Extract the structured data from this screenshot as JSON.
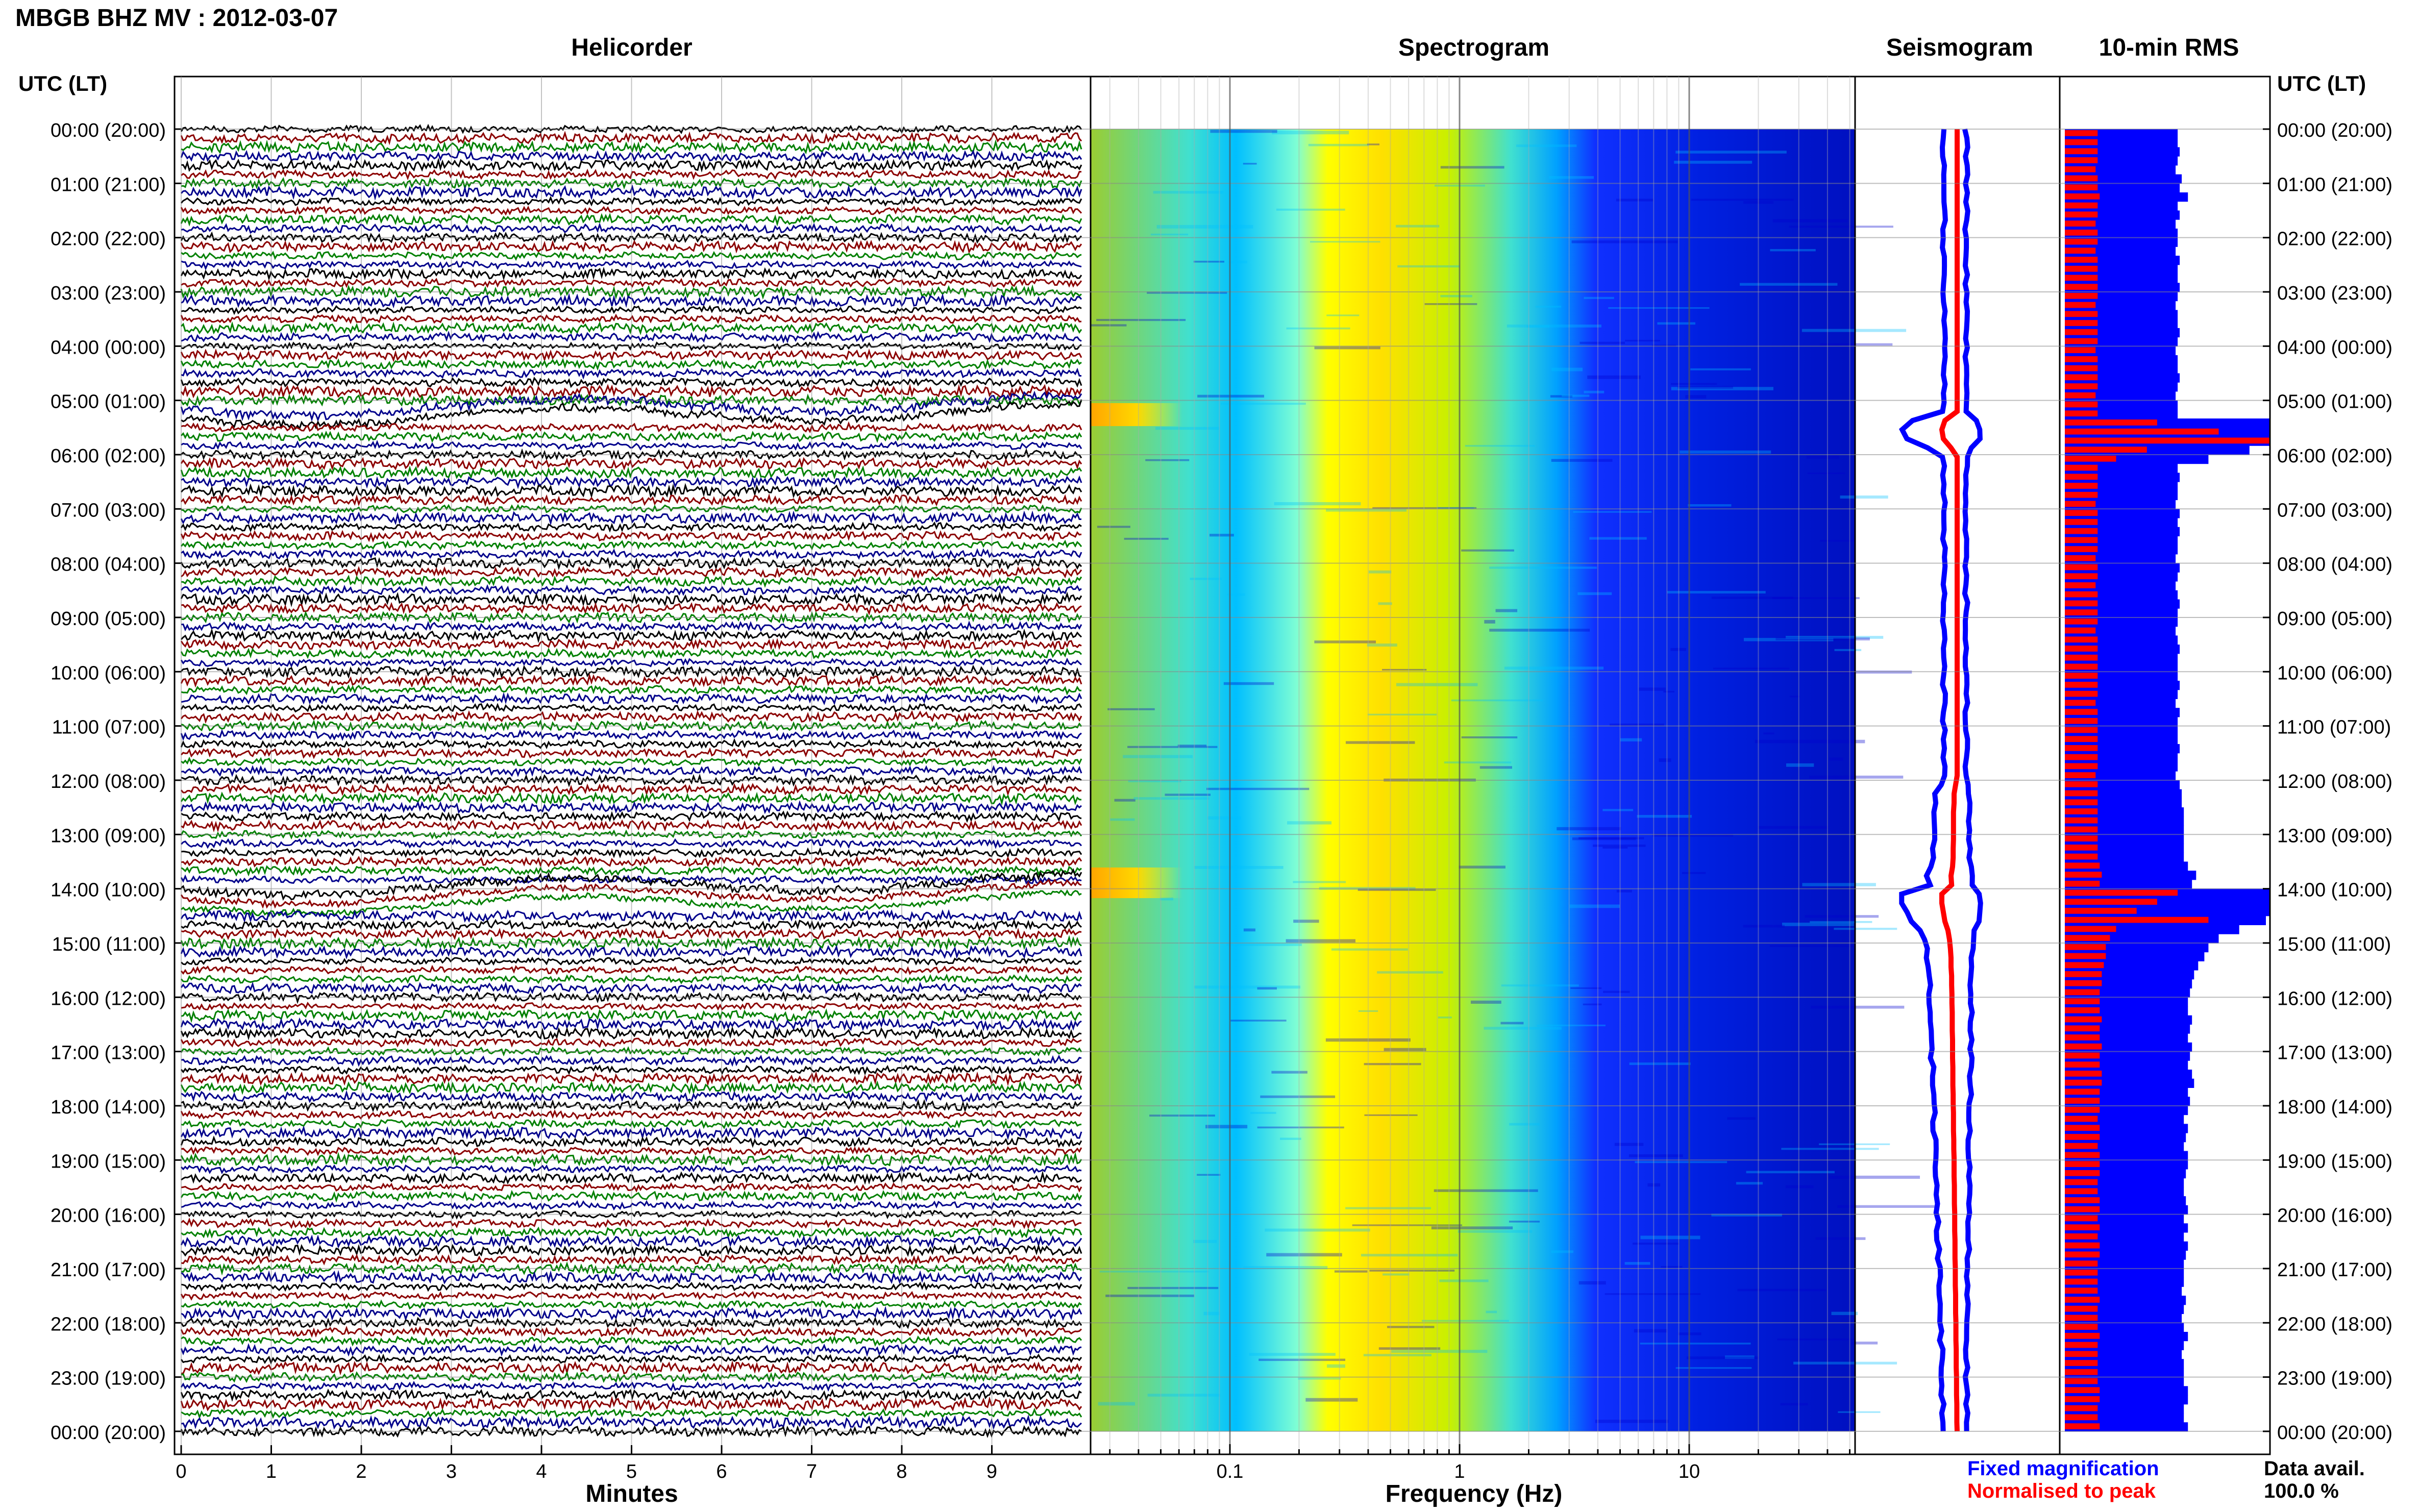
{
  "title": "MBGB BHZ MV : 2012-03-07",
  "panels": {
    "helicorder": "Helicorder",
    "spectrogram": "Spectrogram",
    "seismogram": "Seismogram",
    "rms": "10-min RMS"
  },
  "utc_header": "UTC (LT)",
  "time_labels": [
    "00:00 (20:00)",
    "01:00 (21:00)",
    "02:00 (22:00)",
    "03:00 (23:00)",
    "04:00 (00:00)",
    "05:00 (01:00)",
    "06:00 (02:00)",
    "07:00 (03:00)",
    "08:00 (04:00)",
    "09:00 (05:00)",
    "10:00 (06:00)",
    "11:00 (07:00)",
    "12:00 (08:00)",
    "13:00 (09:00)",
    "14:00 (10:00)",
    "15:00 (11:00)",
    "16:00 (12:00)",
    "17:00 (13:00)",
    "18:00 (14:00)",
    "19:00 (15:00)",
    "20:00 (16:00)",
    "21:00 (17:00)",
    "22:00 (18:00)",
    "23:00 (19:00)",
    "00:00 (20:00)"
  ],
  "minute_ticks": [
    "0",
    "1",
    "2",
    "3",
    "4",
    "5",
    "6",
    "7",
    "8",
    "9"
  ],
  "freq_ticks": [
    "0.1",
    "1",
    "10"
  ],
  "xlabel_minutes": "Minutes",
  "xlabel_freq": "Frequency (Hz)",
  "legend": {
    "fixed": "Fixed magnification",
    "normalised": "Normalised to peak",
    "fixed_color": "#0000ff",
    "normalised_color": "#ff0000"
  },
  "data_avail": {
    "label": "Data avail.",
    "value": "100.0 %"
  },
  "chart_data": {
    "type": "heatmap",
    "station": "MBGB",
    "channel": "BHZ",
    "network": "MV",
    "date": "2012-03-07",
    "helicorder": {
      "rows_per_hour": 6,
      "minutes_per_row": 10,
      "trace_colors": [
        "#000000",
        "#8b0000",
        "#008000",
        "#00008b"
      ],
      "events_utc": [
        "05:15",
        "14:00"
      ]
    },
    "spectrogram": {
      "freq_scale": "log",
      "xlim_hz": [
        0.03,
        50
      ],
      "colormap": [
        "#00008b",
        "#0000ff",
        "#00bfff",
        "#7fffd4",
        "#ffff00",
        "#ff8c00"
      ]
    },
    "rms_10min": {
      "fixed_magnification": [
        0.55,
        0.55,
        0.56,
        0.55,
        0.54,
        0.57,
        0.56,
        0.6,
        0.55,
        0.56,
        0.54,
        0.55,
        0.55,
        0.54,
        0.56,
        0.55,
        0.55,
        0.56,
        0.55,
        0.54,
        0.55,
        0.55,
        0.56,
        0.55,
        0.54,
        0.55,
        0.55,
        0.56,
        0.55,
        0.54,
        0.55,
        0.55,
        1.0,
        1.0,
        1.0,
        0.9,
        0.7,
        0.55,
        0.56,
        0.55,
        0.55,
        0.54,
        0.56,
        0.55,
        0.56,
        0.55,
        0.55,
        0.54,
        0.56,
        0.55,
        0.54,
        0.55,
        0.56,
        0.55,
        0.55,
        0.54,
        0.55,
        0.56,
        0.55,
        0.55,
        0.55,
        0.56,
        0.55,
        0.54,
        0.56,
        0.55,
        0.55,
        0.55,
        0.56,
        0.55,
        0.55,
        0.54,
        0.56,
        0.57,
        0.57,
        0.58,
        0.58,
        0.58,
        0.58,
        0.58,
        0.58,
        0.6,
        0.64,
        0.62,
        1.0,
        1.0,
        1.0,
        0.98,
        0.85,
        0.75,
        0.7,
        0.68,
        0.65,
        0.63,
        0.62,
        0.61,
        0.6,
        0.6,
        0.62,
        0.61,
        0.6,
        0.62,
        0.61,
        0.6,
        0.62,
        0.63,
        0.6,
        0.61,
        0.6,
        0.58,
        0.6,
        0.59,
        0.58,
        0.6,
        0.6,
        0.59,
        0.58,
        0.58,
        0.59,
        0.6,
        0.58,
        0.6,
        0.58,
        0.6,
        0.59,
        0.58,
        0.58,
        0.58,
        0.57,
        0.59,
        0.58,
        0.57,
        0.58,
        0.6,
        0.58,
        0.57,
        0.58,
        0.58,
        0.58,
        0.6,
        0.6,
        0.58,
        0.58,
        0.6
      ],
      "normalised_to_peak": [
        0.16,
        0.16,
        0.16,
        0.16,
        0.15,
        0.16,
        0.16,
        0.17,
        0.16,
        0.16,
        0.15,
        0.16,
        0.16,
        0.15,
        0.16,
        0.16,
        0.16,
        0.16,
        0.16,
        0.15,
        0.16,
        0.16,
        0.16,
        0.16,
        0.15,
        0.16,
        0.16,
        0.16,
        0.16,
        0.15,
        0.16,
        0.16,
        0.45,
        0.75,
        1.0,
        0.4,
        0.25,
        0.16,
        0.16,
        0.16,
        0.16,
        0.15,
        0.16,
        0.16,
        0.16,
        0.16,
        0.16,
        0.15,
        0.16,
        0.16,
        0.15,
        0.16,
        0.16,
        0.16,
        0.16,
        0.15,
        0.16,
        0.16,
        0.16,
        0.16,
        0.16,
        0.16,
        0.16,
        0.15,
        0.16,
        0.16,
        0.16,
        0.16,
        0.16,
        0.16,
        0.16,
        0.15,
        0.16,
        0.16,
        0.16,
        0.16,
        0.16,
        0.16,
        0.16,
        0.16,
        0.16,
        0.17,
        0.18,
        0.17,
        0.55,
        0.45,
        0.35,
        0.7,
        0.25,
        0.22,
        0.2,
        0.2,
        0.19,
        0.18,
        0.18,
        0.17,
        0.17,
        0.17,
        0.18,
        0.17,
        0.17,
        0.18,
        0.17,
        0.17,
        0.18,
        0.18,
        0.17,
        0.17,
        0.17,
        0.16,
        0.17,
        0.17,
        0.16,
        0.17,
        0.17,
        0.17,
        0.16,
        0.16,
        0.17,
        0.17,
        0.16,
        0.17,
        0.16,
        0.17,
        0.17,
        0.16,
        0.16,
        0.16,
        0.16,
        0.17,
        0.16,
        0.16,
        0.16,
        0.17,
        0.16,
        0.16,
        0.16,
        0.16,
        0.16,
        0.17,
        0.17,
        0.16,
        0.16,
        0.17
      ]
    },
    "seismogram_envelope": {
      "fixed_magnification": [
        0.5,
        0.5,
        0.5,
        0.5,
        0.5,
        0.5,
        0.5,
        0.5,
        0.5,
        0.5,
        0.5,
        0.5,
        0.5,
        0.5,
        0.5,
        0.5,
        0.5,
        0.5,
        0.5,
        0.5,
        0.5,
        0.5,
        0.5,
        0.5,
        0.5,
        0.5,
        0.5,
        0.5,
        0.5,
        0.5,
        0.5,
        0.5,
        0.9,
        1.0,
        0.95,
        0.7,
        0.5,
        0.5,
        0.5,
        0.5,
        0.5,
        0.5,
        0.5,
        0.5,
        0.5,
        0.5,
        0.5,
        0.5,
        0.5,
        0.5,
        0.5,
        0.5,
        0.5,
        0.5,
        0.5,
        0.5,
        0.5,
        0.5,
        0.5,
        0.5,
        0.5,
        0.5,
        0.5,
        0.5,
        0.5,
        0.5,
        0.5,
        0.5,
        0.5,
        0.5,
        0.5,
        0.5,
        0.55,
        0.6,
        0.6,
        0.62,
        0.62,
        0.62,
        0.62,
        0.63,
        0.63,
        0.65,
        0.7,
        0.68,
        1.0,
        1.0,
        0.95,
        0.9,
        0.8,
        0.75,
        0.72,
        0.7,
        0.7,
        0.68,
        0.68,
        0.67,
        0.67,
        0.66,
        0.66,
        0.66,
        0.65,
        0.65,
        0.65,
        0.64,
        0.64,
        0.64,
        0.63,
        0.63,
        0.62,
        0.62,
        0.62,
        0.61,
        0.61,
        0.6,
        0.6,
        0.6,
        0.59,
        0.59,
        0.59,
        0.58,
        0.58,
        0.58,
        0.57,
        0.57,
        0.57,
        0.56,
        0.56,
        0.56,
        0.55,
        0.55,
        0.55,
        0.54,
        0.54,
        0.54,
        0.53,
        0.53,
        0.53,
        0.52,
        0.52,
        0.52,
        0.51,
        0.51,
        0.51,
        0.5
      ]
    }
  }
}
